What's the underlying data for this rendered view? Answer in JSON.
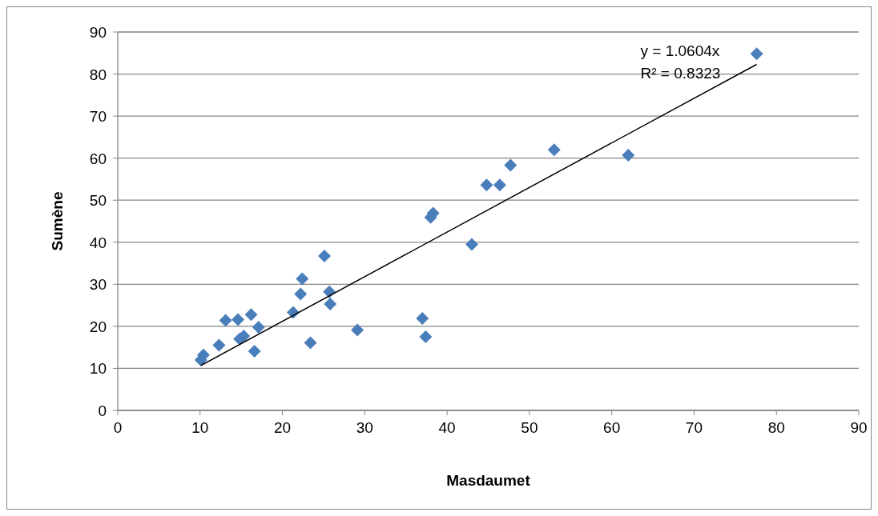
{
  "chart_data": {
    "type": "scatter",
    "xlabel": "Masdaumet",
    "ylabel": "Sumène",
    "xlim": [
      0,
      90
    ],
    "ylim": [
      0,
      90
    ],
    "xticks": [
      0,
      10,
      20,
      30,
      40,
      50,
      60,
      70,
      80,
      90
    ],
    "yticks": [
      0,
      10,
      20,
      30,
      40,
      50,
      60,
      70,
      80,
      90
    ],
    "grid": "y",
    "annotations": [
      "y = 1.0604x",
      "R² = 0.8323"
    ],
    "series": [
      {
        "color": "#4a7ebb",
        "marker": "diamond",
        "x": [
          10.1,
          10.4,
          12.3,
          13.1,
          14.6,
          14.8,
          15.3,
          16.2,
          16.6,
          17.1,
          21.3,
          22.2,
          22.4,
          23.4,
          25.1,
          25.7,
          25.8,
          29.1,
          37.0,
          37.4,
          38.0,
          38.3,
          43.0,
          44.8,
          46.4,
          47.7,
          53.0,
          62.0,
          77.6
        ],
        "values": [
          12,
          13.2,
          15.5,
          21.4,
          21.6,
          17,
          17.7,
          22.8,
          14.1,
          19.8,
          23.3,
          27.7,
          31.3,
          16.1,
          36.7,
          28.2,
          25.3,
          19.1,
          21.9,
          17.5,
          45.9,
          46.9,
          39.5,
          53.6,
          53.6,
          58.3,
          62,
          60.7,
          84.8
        ]
      },
      {
        "type": "line",
        "color": "#000000",
        "marker": "none",
        "line_style": "solid",
        "x": [
          10.1,
          77.6
        ],
        "values": [
          10.7,
          82.3
        ]
      }
    ]
  }
}
